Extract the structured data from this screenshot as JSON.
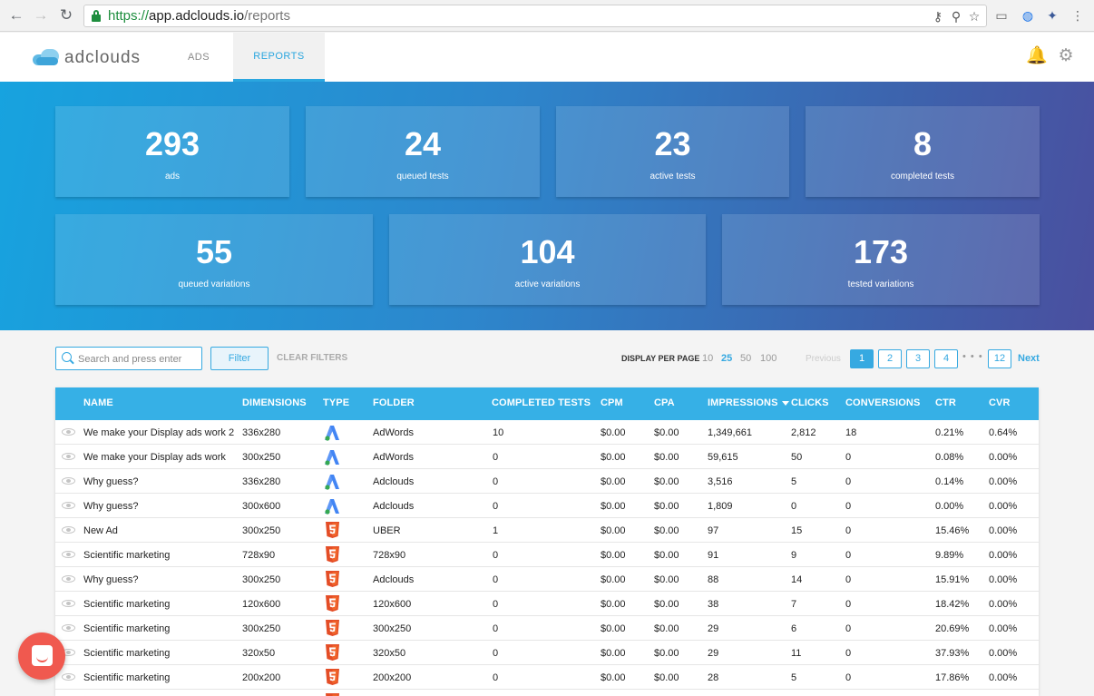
{
  "browser": {
    "url_scheme": "https://",
    "url_host": "app.adclouds.io",
    "url_path": "/reports",
    "back_glyph": "←",
    "forward_glyph": "→",
    "reload_glyph": "↻",
    "key_glyph": "⚷",
    "zoom_glyph": "⚲",
    "star_glyph": "☆",
    "cast_glyph": "▭",
    "ext1_glyph": "◍",
    "ext2_glyph": "✦",
    "menu_glyph": "⋮"
  },
  "header": {
    "logo_text": "adclouds",
    "tabs": [
      {
        "label": "ADS",
        "active": false
      },
      {
        "label": "REPORTS",
        "active": true
      }
    ],
    "bell_glyph": "🔔",
    "gear_glyph": "⚙"
  },
  "stats": [
    {
      "value": "293",
      "label": "ads"
    },
    {
      "value": "24",
      "label": "queued tests"
    },
    {
      "value": "23",
      "label": "active tests"
    },
    {
      "value": "8",
      "label": "completed tests"
    },
    {
      "value": "55",
      "label": "queued variations"
    },
    {
      "value": "104",
      "label": "active variations"
    },
    {
      "value": "173",
      "label": "tested variations"
    }
  ],
  "controls": {
    "search_placeholder": "Search and press enter",
    "filter_label": "Filter",
    "clear_filters_label": "CLEAR FILTERS",
    "display_per_page_label": "DISPLAY PER PAGE",
    "per_page_options": [
      "10",
      "25",
      "50",
      "100"
    ],
    "per_page_selected": "25",
    "previous_label": "Previous",
    "next_label": "Next",
    "pages": [
      "1",
      "2",
      "3",
      "4"
    ],
    "current_page": "1",
    "dots": "• • •",
    "last_page": "12"
  },
  "table": {
    "columns": [
      "NAME",
      "DIMENSIONS",
      "TYPE",
      "FOLDER",
      "COMPLETED TESTS",
      "CPM",
      "CPA",
      "IMPRESSIONS",
      "CLICKS",
      "CONVERSIONS",
      "CTR",
      "CVR"
    ],
    "sorted_column": "IMPRESSIONS",
    "rows": [
      {
        "name": "We make your Display ads work 2",
        "dimensions": "336x280",
        "type": "adwords",
        "folder": "AdWords",
        "completed": "10",
        "cpm": "$0.00",
        "cpa": "$0.00",
        "impressions": "1,349,661",
        "clicks": "2,812",
        "conversions": "18",
        "ctr": "0.21%",
        "cvr": "0.64%"
      },
      {
        "name": "We make your Display ads work",
        "dimensions": "300x250",
        "type": "adwords",
        "folder": "AdWords",
        "completed": "0",
        "cpm": "$0.00",
        "cpa": "$0.00",
        "impressions": "59,615",
        "clicks": "50",
        "conversions": "0",
        "ctr": "0.08%",
        "cvr": "0.00%"
      },
      {
        "name": "Why guess?",
        "dimensions": "336x280",
        "type": "adwords",
        "folder": "Adclouds",
        "completed": "0",
        "cpm": "$0.00",
        "cpa": "$0.00",
        "impressions": "3,516",
        "clicks": "5",
        "conversions": "0",
        "ctr": "0.14%",
        "cvr": "0.00%"
      },
      {
        "name": "Why guess?",
        "dimensions": "300x600",
        "type": "adwords",
        "folder": "Adclouds",
        "completed": "0",
        "cpm": "$0.00",
        "cpa": "$0.00",
        "impressions": "1,809",
        "clicks": "0",
        "conversions": "0",
        "ctr": "0.00%",
        "cvr": "0.00%"
      },
      {
        "name": "New Ad",
        "dimensions": "300x250",
        "type": "html5",
        "folder": "UBER",
        "completed": "1",
        "cpm": "$0.00",
        "cpa": "$0.00",
        "impressions": "97",
        "clicks": "15",
        "conversions": "0",
        "ctr": "15.46%",
        "cvr": "0.00%"
      },
      {
        "name": "Scientific marketing",
        "dimensions": "728x90",
        "type": "html5",
        "folder": "728x90",
        "completed": "0",
        "cpm": "$0.00",
        "cpa": "$0.00",
        "impressions": "91",
        "clicks": "9",
        "conversions": "0",
        "ctr": "9.89%",
        "cvr": "0.00%"
      },
      {
        "name": "Why guess?",
        "dimensions": "300x250",
        "type": "html5",
        "folder": "Adclouds",
        "completed": "0",
        "cpm": "$0.00",
        "cpa": "$0.00",
        "impressions": "88",
        "clicks": "14",
        "conversions": "0",
        "ctr": "15.91%",
        "cvr": "0.00%"
      },
      {
        "name": "Scientific marketing",
        "dimensions": "120x600",
        "type": "html5",
        "folder": "120x600",
        "completed": "0",
        "cpm": "$0.00",
        "cpa": "$0.00",
        "impressions": "38",
        "clicks": "7",
        "conversions": "0",
        "ctr": "18.42%",
        "cvr": "0.00%"
      },
      {
        "name": "Scientific marketing",
        "dimensions": "300x250",
        "type": "html5",
        "folder": "300x250",
        "completed": "0",
        "cpm": "$0.00",
        "cpa": "$0.00",
        "impressions": "29",
        "clicks": "6",
        "conversions": "0",
        "ctr": "20.69%",
        "cvr": "0.00%"
      },
      {
        "name": "Scientific marketing",
        "dimensions": "320x50",
        "type": "html5",
        "folder": "320x50",
        "completed": "0",
        "cpm": "$0.00",
        "cpa": "$0.00",
        "impressions": "29",
        "clicks": "11",
        "conversions": "0",
        "ctr": "37.93%",
        "cvr": "0.00%"
      },
      {
        "name": "Scientific marketing",
        "dimensions": "200x200",
        "type": "html5",
        "folder": "200x200",
        "completed": "0",
        "cpm": "$0.00",
        "cpa": "$0.00",
        "impressions": "28",
        "clicks": "5",
        "conversions": "0",
        "ctr": "17.86%",
        "cvr": "0.00%"
      },
      {
        "name": "",
        "dimensions": "",
        "type": "html5",
        "folder": "",
        "completed": "",
        "cpm": "",
        "cpa": "",
        "impressions": "",
        "clicks": "",
        "conversions": "",
        "ctr": "",
        "cvr": ""
      }
    ]
  },
  "colors": {
    "accent": "#36a9e1",
    "table_header": "#36b0e6",
    "adwords_blue": "#4285f4",
    "adwords_green": "#34a853",
    "html5_orange": "#e44d26",
    "chat_bubble": "#f0594f"
  }
}
